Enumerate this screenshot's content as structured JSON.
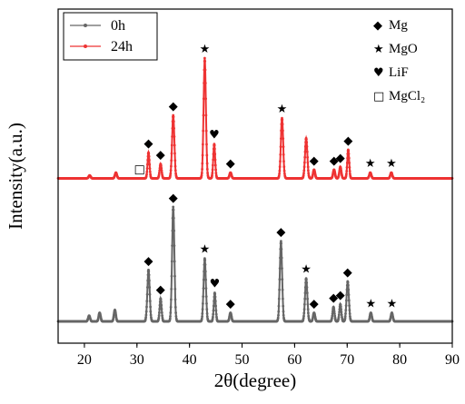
{
  "chart_data": {
    "type": "line",
    "xlabel": "2θ(degree)",
    "ylabel": "Intensity(a.u.)",
    "xlim": [
      15,
      90
    ],
    "x_ticks": [
      20,
      30,
      40,
      50,
      60,
      70,
      80,
      90
    ],
    "y_ticks_shown": false,
    "grid": false,
    "legend_position": "top-left",
    "series": [
      {
        "name": "0h",
        "color": "#666666",
        "marker": "circle",
        "baseline": 0,
        "peaks": [
          {
            "x": 20.9,
            "h": 2
          },
          {
            "x": 22.9,
            "h": 3
          },
          {
            "x": 25.8,
            "h": 4
          },
          {
            "x": 32.2,
            "h": 18
          },
          {
            "x": 34.5,
            "h": 8
          },
          {
            "x": 36.9,
            "h": 40
          },
          {
            "x": 42.9,
            "h": 22
          },
          {
            "x": 44.8,
            "h": 10
          },
          {
            "x": 47.8,
            "h": 3
          },
          {
            "x": 57.4,
            "h": 28
          },
          {
            "x": 62.2,
            "h": 15
          },
          {
            "x": 63.7,
            "h": 3
          },
          {
            "x": 67.4,
            "h": 5
          },
          {
            "x": 68.7,
            "h": 6
          },
          {
            "x": 70.1,
            "h": 14
          },
          {
            "x": 74.5,
            "h": 3
          },
          {
            "x": 78.5,
            "h": 3
          }
        ]
      },
      {
        "name": "24h",
        "color": "#ee3333",
        "marker": "circle",
        "baseline": 50,
        "peaks": [
          {
            "x": 21.0,
            "h": 1
          },
          {
            "x": 26.0,
            "h": 2
          },
          {
            "x": 32.2,
            "h": 9
          },
          {
            "x": 34.5,
            "h": 5
          },
          {
            "x": 36.9,
            "h": 22
          },
          {
            "x": 42.9,
            "h": 42
          },
          {
            "x": 44.7,
            "h": 12
          },
          {
            "x": 47.8,
            "h": 2
          },
          {
            "x": 57.6,
            "h": 21
          },
          {
            "x": 62.2,
            "h": 14
          },
          {
            "x": 63.7,
            "h": 3
          },
          {
            "x": 67.5,
            "h": 3
          },
          {
            "x": 68.7,
            "h": 4
          },
          {
            "x": 70.2,
            "h": 10
          },
          {
            "x": 74.4,
            "h": 2
          },
          {
            "x": 78.4,
            "h": 2
          }
        ]
      }
    ],
    "phase_legend": [
      {
        "symbol": "◆",
        "label": "Mg"
      },
      {
        "symbol": "★",
        "label": "MgO"
      },
      {
        "symbol": "♥",
        "label": "LiF"
      },
      {
        "symbol": "□",
        "label": "MgCl₂"
      }
    ],
    "annotations": [
      {
        "series": "0h",
        "x": 32.2,
        "symbol": "◆"
      },
      {
        "series": "0h",
        "x": 34.5,
        "symbol": "◆"
      },
      {
        "series": "0h",
        "x": 36.9,
        "symbol": "◆"
      },
      {
        "series": "0h",
        "x": 42.9,
        "symbol": "★"
      },
      {
        "series": "0h",
        "x": 44.8,
        "symbol": "♥"
      },
      {
        "series": "0h",
        "x": 47.8,
        "symbol": "◆"
      },
      {
        "series": "0h",
        "x": 57.4,
        "symbol": "◆"
      },
      {
        "series": "0h",
        "x": 62.2,
        "symbol": "★"
      },
      {
        "series": "0h",
        "x": 63.7,
        "symbol": "◆"
      },
      {
        "series": "0h",
        "x": 67.4,
        "symbol": "◆"
      },
      {
        "series": "0h",
        "x": 68.7,
        "symbol": "◆"
      },
      {
        "series": "0h",
        "x": 70.1,
        "symbol": "◆"
      },
      {
        "series": "0h",
        "x": 74.5,
        "symbol": "★"
      },
      {
        "series": "0h",
        "x": 78.5,
        "symbol": "★"
      },
      {
        "series": "24h",
        "x": 30.5,
        "symbol": "□"
      },
      {
        "series": "24h",
        "x": 32.2,
        "symbol": "◆"
      },
      {
        "series": "24h",
        "x": 34.5,
        "symbol": "◆"
      },
      {
        "series": "24h",
        "x": 36.9,
        "symbol": "◆"
      },
      {
        "series": "24h",
        "x": 42.9,
        "symbol": "★"
      },
      {
        "series": "24h",
        "x": 44.7,
        "symbol": "♥"
      },
      {
        "series": "24h",
        "x": 47.8,
        "symbol": "◆"
      },
      {
        "series": "24h",
        "x": 57.6,
        "symbol": "★"
      },
      {
        "series": "24h",
        "x": 63.7,
        "symbol": "◆"
      },
      {
        "series": "24h",
        "x": 67.5,
        "symbol": "◆"
      },
      {
        "series": "24h",
        "x": 68.7,
        "symbol": "◆"
      },
      {
        "series": "24h",
        "x": 70.2,
        "symbol": "◆"
      },
      {
        "series": "24h",
        "x": 74.4,
        "symbol": "★"
      },
      {
        "series": "24h",
        "x": 78.4,
        "symbol": "★"
      }
    ]
  }
}
